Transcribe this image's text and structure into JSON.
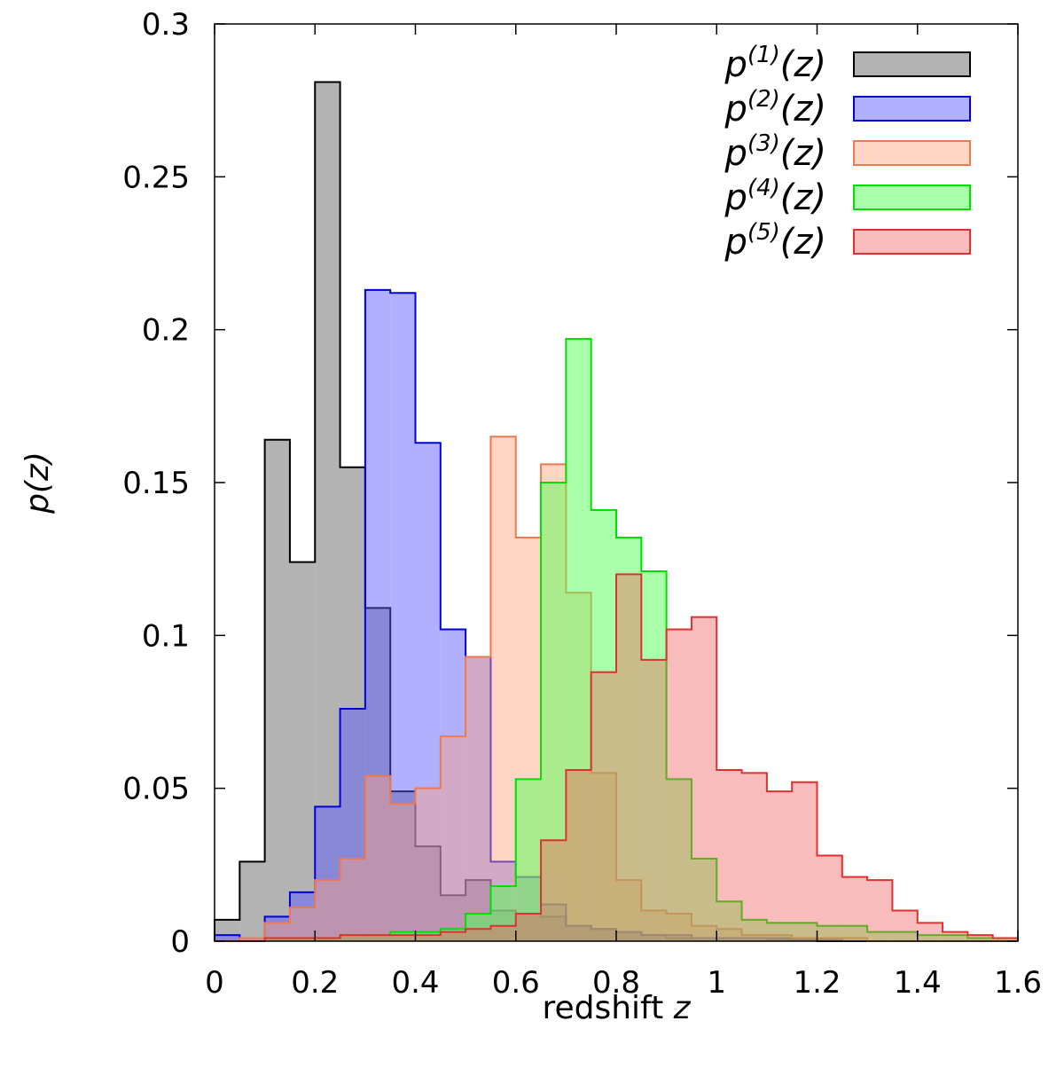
{
  "chart_data": {
    "type": "histogram",
    "xlabel_text": "redshift ",
    "xlabel_var": "z",
    "ylabel": "p(z)",
    "xlim": [
      0,
      1.6
    ],
    "ylim": [
      0,
      0.3
    ],
    "xticks": [
      0,
      0.2,
      0.4,
      0.6,
      0.8,
      1.0,
      1.2,
      1.4,
      1.6
    ],
    "xtick_labels": [
      "0",
      "0.2",
      "0.4",
      "0.6",
      "0.8",
      "1",
      "1.2",
      "1.4",
      "1.6"
    ],
    "yticks": [
      0,
      0.05,
      0.1,
      0.15,
      0.2,
      0.25,
      0.3
    ],
    "ytick_labels": [
      "0",
      "0.05",
      "0.1",
      "0.15",
      "0.2",
      "0.25",
      "0.3"
    ],
    "bin_edges": [
      0.0,
      0.05,
      0.1,
      0.15,
      0.2,
      0.25,
      0.3,
      0.35,
      0.4,
      0.45,
      0.5,
      0.55,
      0.6,
      0.65,
      0.7,
      0.75,
      0.8,
      0.85,
      0.9,
      0.95,
      1.0,
      1.05,
      1.1,
      1.15,
      1.2,
      1.25,
      1.3,
      1.35,
      1.4,
      1.45,
      1.5,
      1.55,
      1.6
    ],
    "legend_position": "top-right",
    "series": [
      {
        "name": "p(1)(z)",
        "base": "p",
        "superscript": "(1)",
        "arg": "(z)",
        "stroke": "#000000",
        "fill": "#808080",
        "fill_opacity": 0.6,
        "values": [
          0.007,
          0.026,
          0.164,
          0.124,
          0.281,
          0.155,
          0.109,
          0.049,
          0.031,
          0.015,
          0.02,
          0.01,
          0.009,
          0.008,
          0.005,
          0.004,
          0.003,
          0.002,
          0.001,
          0.001,
          0.001,
          0.001,
          0.0005,
          0.0005,
          0,
          0,
          0,
          0,
          0,
          0,
          0,
          0
        ]
      },
      {
        "name": "p(2)(z)",
        "base": "p",
        "superscript": "(2)",
        "arg": "(z)",
        "stroke": "#0000dd",
        "fill": "#5a5aff",
        "fill_opacity": 0.48,
        "values": [
          0.002,
          0.001,
          0.008,
          0.016,
          0.044,
          0.076,
          0.213,
          0.212,
          0.163,
          0.102,
          0.093,
          0.026,
          0.021,
          0.012,
          0.005,
          0.004,
          0.003,
          0.002,
          0.002,
          0.001,
          0.001,
          0.001,
          0.001,
          0.0005,
          0.0005,
          0,
          0,
          0,
          0,
          0,
          0,
          0
        ]
      },
      {
        "name": "p(3)(z)",
        "base": "p",
        "superscript": "(3)",
        "arg": "(z)",
        "stroke": "#f07850",
        "fill": "#ffa580",
        "fill_opacity": 0.45,
        "values": [
          0,
          0.001,
          0.006,
          0.011,
          0.02,
          0.027,
          0.054,
          0.045,
          0.05,
          0.067,
          0.093,
          0.165,
          0.132,
          0.156,
          0.114,
          0.055,
          0.02,
          0.01,
          0.009,
          0.005,
          0.004,
          0.002,
          0.002,
          0.001,
          0.001,
          0.001,
          0,
          0,
          0,
          0,
          0,
          0
        ]
      },
      {
        "name": "p(4)(z)",
        "base": "p",
        "superscript": "(4)",
        "arg": "(z)",
        "stroke": "#00e000",
        "fill": "#55ff55",
        "fill_opacity": 0.5,
        "values": [
          0,
          0,
          0.001,
          0.001,
          0.001,
          0.002,
          0.002,
          0.003,
          0.003,
          0.004,
          0.009,
          0.018,
          0.053,
          0.15,
          0.197,
          0.141,
          0.132,
          0.121,
          0.053,
          0.027,
          0.013,
          0.007,
          0.006,
          0.006,
          0.005,
          0.005,
          0.003,
          0.003,
          0.002,
          0.002,
          0.001,
          0.001
        ]
      },
      {
        "name": "p(5)(z)",
        "base": "p",
        "superscript": "(5)",
        "arg": "(z)",
        "stroke": "#e03030",
        "fill": "#f06060",
        "fill_opacity": 0.42,
        "values": [
          0,
          0,
          0.001,
          0.001,
          0.001,
          0.002,
          0.002,
          0.002,
          0.002,
          0.003,
          0.004,
          0.005,
          0.009,
          0.033,
          0.056,
          0.088,
          0.12,
          0.092,
          0.102,
          0.106,
          0.056,
          0.055,
          0.049,
          0.052,
          0.028,
          0.021,
          0.02,
          0.01,
          0.006,
          0.003,
          0.002,
          0.001
        ]
      }
    ]
  }
}
